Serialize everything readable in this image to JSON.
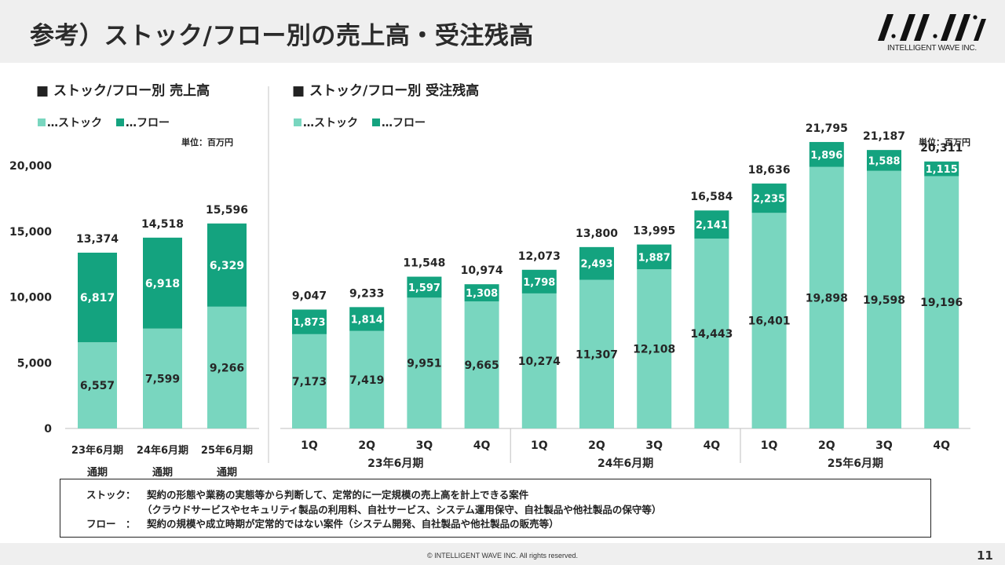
{
  "header": {
    "title": "参考）ストック/フロー別の売上高・受注残高",
    "logo_text": "INTELLIGENT WAVE INC."
  },
  "colors": {
    "stock": "#79d6bf",
    "flow": "#14a37f"
  },
  "left_panel": {
    "title": "■ ストック/フロー別 売上高",
    "legend_stock": "…ストック",
    "legend_flow": "…フロー",
    "unit": "単位：百万円"
  },
  "right_panel": {
    "title": "■ ストック/フロー別 受注残高",
    "legend_stock": "…ストック",
    "legend_flow": "…フロー",
    "unit": "単位：百万円"
  },
  "chart_data": [
    {
      "type": "bar",
      "stacked": true,
      "categories": [
        "23年6月期",
        "24年6月期",
        "25年6月期"
      ],
      "category_sublabels": [
        "通期",
        "通期",
        "通期"
      ],
      "series": [
        {
          "name": "ストック",
          "values": [
            6557,
            7599,
            9266
          ]
        },
        {
          "name": "フロー",
          "values": [
            6817,
            6918,
            6329
          ]
        }
      ],
      "totals": [
        13374,
        14518,
        15596
      ],
      "ylim": [
        0,
        20000
      ],
      "yticks": [
        0,
        5000,
        10000,
        15000,
        20000
      ],
      "ytick_labels": [
        "0",
        "5,000",
        "10,000",
        "15,000",
        "20,000"
      ],
      "grid": false,
      "legend": "top-left"
    },
    {
      "type": "bar",
      "stacked": true,
      "categories": [
        "1Q",
        "2Q",
        "3Q",
        "4Q",
        "1Q",
        "2Q",
        "3Q",
        "4Q",
        "1Q",
        "2Q",
        "3Q",
        "4Q"
      ],
      "groups": [
        "23年6月期",
        "24年6月期",
        "25年6月期"
      ],
      "series": [
        {
          "name": "ストック",
          "values": [
            7173,
            7419,
            9951,
            9665,
            10274,
            11307,
            12108,
            14443,
            16401,
            19898,
            19598,
            19196
          ]
        },
        {
          "name": "フロー",
          "values": [
            1873,
            1814,
            1597,
            1308,
            1798,
            2493,
            1887,
            2141,
            2235,
            1896,
            1588,
            1115
          ]
        }
      ],
      "totals": [
        9047,
        9233,
        11548,
        10974,
        12073,
        13800,
        13995,
        16584,
        18636,
        21795,
        21187,
        20311
      ],
      "ylim": [
        0,
        22500
      ],
      "grid": false,
      "legend": "top-left"
    }
  ],
  "notes": {
    "stock_label": "ストック：",
    "stock_text": "契約の形態や業務の実態等から判断して、定常的に一定規模の売上高を計上できる案件",
    "stock_text2": "（クラウドサービスやセキュリティ製品の利用料、自社サービス、システム運用保守、自社製品や他社製品の保守等）",
    "flow_label": "フロー　：",
    "flow_text": "契約の規模や成立時期が定常的ではない案件（システム開発、自社製品や他社製品の販売等）"
  },
  "footer": {
    "copyright": "© INTELLIGENT WAVE INC. All rights reserved.",
    "page_number": "11"
  }
}
